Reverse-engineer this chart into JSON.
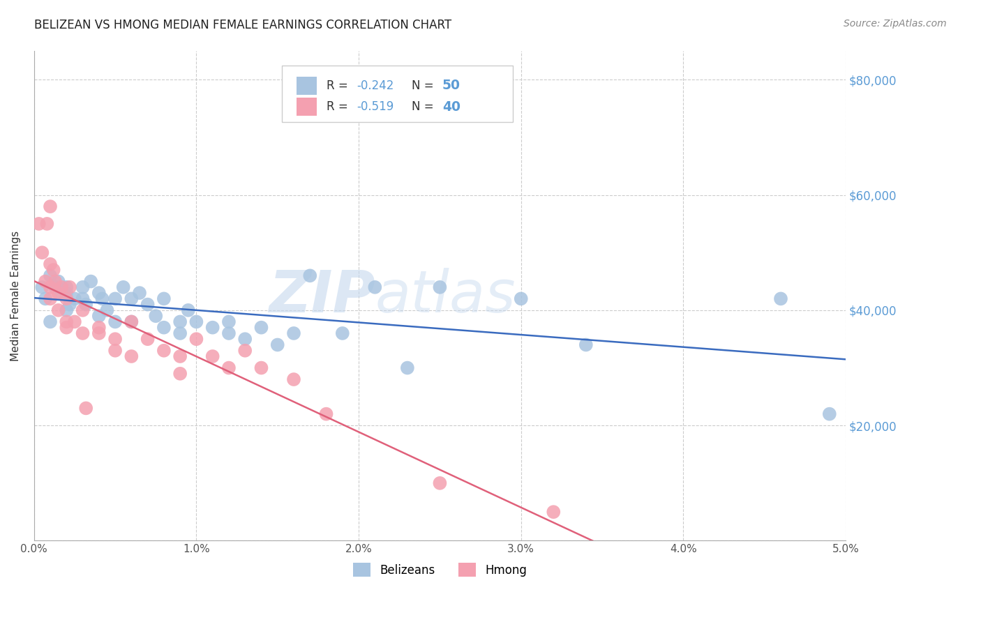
{
  "title": "BELIZEAN VS HMONG MEDIAN FEMALE EARNINGS CORRELATION CHART",
  "source": "Source: ZipAtlas.com",
  "ylabel": "Median Female Earnings",
  "xlim": [
    0.0,
    0.05
  ],
  "ylim": [
    0,
    85000
  ],
  "yticks": [
    0,
    20000,
    40000,
    60000,
    80000
  ],
  "ytick_labels": [
    "",
    "$20,000",
    "$40,000",
    "$60,000",
    "$80,000"
  ],
  "xtick_labels": [
    "0.0%",
    "1.0%",
    "2.0%",
    "3.0%",
    "4.0%",
    "5.0%"
  ],
  "xticks": [
    0.0,
    0.01,
    0.02,
    0.03,
    0.04,
    0.05
  ],
  "belizean_color": "#a8c4e0",
  "hmong_color": "#f4a0b0",
  "belizean_line_color": "#3a6bbf",
  "hmong_line_color": "#e0607a",
  "right_tick_color": "#5b9bd5",
  "background_color": "#ffffff",
  "grid_color": "#cccccc",
  "legend_R_belizean": "-0.242",
  "legend_N_belizean": "50",
  "legend_R_hmong": "-0.519",
  "legend_N_hmong": "40",
  "belizean_x": [
    0.0005,
    0.0007,
    0.001,
    0.001,
    0.0013,
    0.0015,
    0.0017,
    0.002,
    0.002,
    0.002,
    0.0022,
    0.0025,
    0.003,
    0.003,
    0.0032,
    0.0035,
    0.004,
    0.004,
    0.0042,
    0.0045,
    0.005,
    0.005,
    0.0055,
    0.006,
    0.006,
    0.0065,
    0.007,
    0.0075,
    0.008,
    0.008,
    0.009,
    0.009,
    0.0095,
    0.01,
    0.011,
    0.012,
    0.012,
    0.013,
    0.014,
    0.015,
    0.016,
    0.017,
    0.019,
    0.021,
    0.023,
    0.025,
    0.03,
    0.034,
    0.046,
    0.049
  ],
  "belizean_y": [
    44000,
    42000,
    46000,
    38000,
    44000,
    45000,
    43000,
    44000,
    40000,
    43000,
    41000,
    42000,
    44000,
    42000,
    41000,
    45000,
    43000,
    39000,
    42000,
    40000,
    42000,
    38000,
    44000,
    42000,
    38000,
    43000,
    41000,
    39000,
    42000,
    37000,
    38000,
    36000,
    40000,
    38000,
    37000,
    36000,
    38000,
    35000,
    37000,
    34000,
    36000,
    46000,
    36000,
    44000,
    30000,
    44000,
    42000,
    34000,
    42000,
    22000
  ],
  "hmong_x": [
    0.0003,
    0.0005,
    0.0007,
    0.0008,
    0.001,
    0.001,
    0.001,
    0.001,
    0.0012,
    0.0013,
    0.0015,
    0.0015,
    0.0017,
    0.002,
    0.002,
    0.002,
    0.0022,
    0.0025,
    0.003,
    0.003,
    0.0032,
    0.004,
    0.004,
    0.005,
    0.005,
    0.006,
    0.006,
    0.007,
    0.008,
    0.009,
    0.009,
    0.01,
    0.011,
    0.012,
    0.013,
    0.014,
    0.016,
    0.018,
    0.025,
    0.032
  ],
  "hmong_y": [
    55000,
    50000,
    45000,
    55000,
    48000,
    44000,
    42000,
    58000,
    47000,
    45000,
    43000,
    40000,
    44000,
    42000,
    38000,
    37000,
    44000,
    38000,
    40000,
    36000,
    23000,
    37000,
    36000,
    35000,
    33000,
    38000,
    32000,
    35000,
    33000,
    32000,
    29000,
    35000,
    32000,
    30000,
    33000,
    30000,
    28000,
    22000,
    10000,
    5000
  ]
}
